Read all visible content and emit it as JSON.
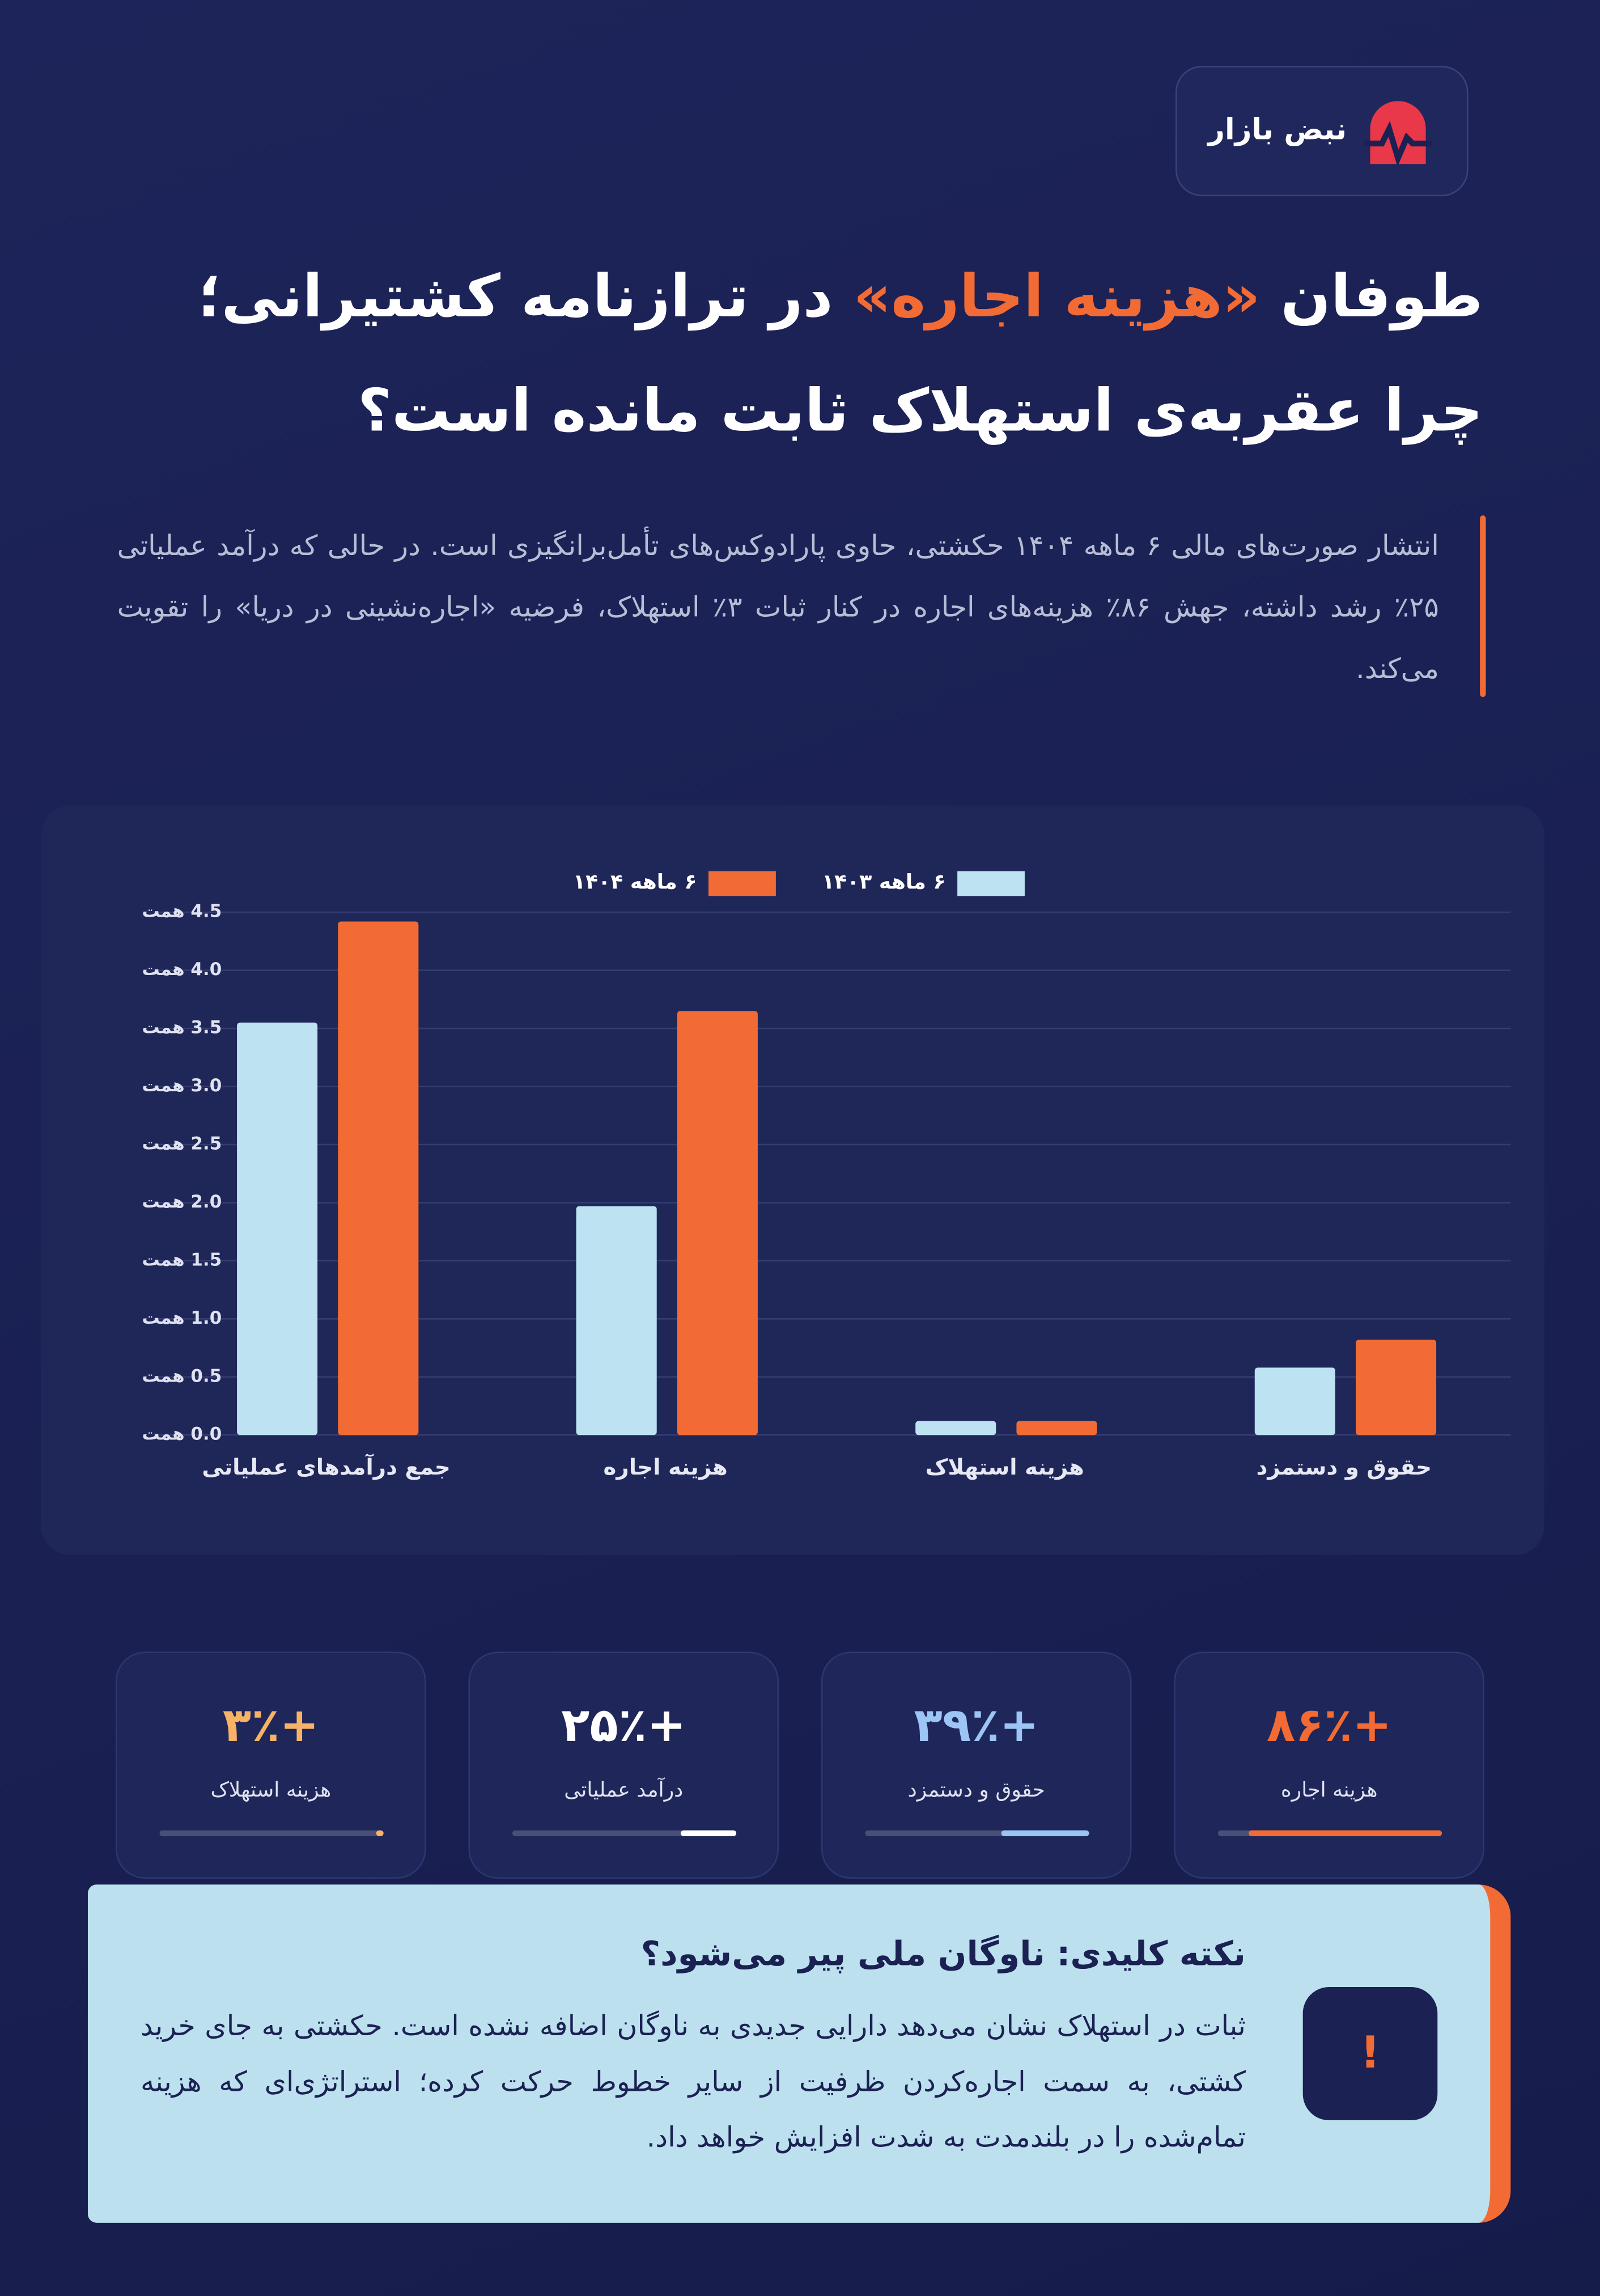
{
  "brand": "نبض بازار",
  "header": {
    "title_start": "طوفان",
    "title_highlight": "«هزینه اجاره»",
    "title_end": "در ترازنامه کشتیرانی؛",
    "title_line2": "چرا عقربه‌ی استهلاک ثابت مانده است؟"
  },
  "intro": "انتشار صورت‌های مالی ۶ ماهه ۱۴۰۴ حکشتی، حاوی پارادوکس‌های تأمل‌برانگیزی است. در حالی که درآمد عملیاتی ۲۵٪ رشد داشته، جهش ۸۶٪ هزینه‌های اجاره در کنار ثبات ۳٪ استهلاک، فرضیه «اجاره‌نشینی در دریا» را تقویت می‌کند.",
  "chart_data": {
    "type": "bar",
    "categories": [
      "جمع درآمدهای عملیاتی",
      "هزینه اجاره",
      "هزینه استهلاک",
      "حقوق و دستمزد"
    ],
    "series": [
      {
        "name": "۶ ماهه ۱۴۰۳",
        "color": "#bde3f2",
        "values": [
          3.55,
          1.97,
          0.12,
          0.58
        ]
      },
      {
        "name": "۶ ماهه ۱۴۰۴",
        "color": "#f26b35",
        "values": [
          4.42,
          3.65,
          0.12,
          0.82
        ]
      }
    ],
    "ylim": [
      0,
      4.5
    ],
    "yticks": [
      {
        "value": 0,
        "label": "0.0 همت"
      },
      {
        "value": 0.5,
        "label": "0.5 همت"
      },
      {
        "value": 1,
        "label": "1.0 همت"
      },
      {
        "value": 1.5,
        "label": "1.5 همت"
      },
      {
        "value": 2,
        "label": "2.0 همت"
      },
      {
        "value": 2.5,
        "label": "2.5 همت"
      },
      {
        "value": 3,
        "label": "3.0 همت"
      },
      {
        "value": 3.5,
        "label": "3.5 همت"
      },
      {
        "value": 4,
        "label": "4.0 همت"
      },
      {
        "value": 4.5,
        "label": "4.5 همت"
      }
    ],
    "grid": true,
    "legend": "top"
  },
  "stats": [
    {
      "value": 86,
      "label": "+۸۶٪",
      "name": "هزینه اجاره",
      "color": "#f26b35"
    },
    {
      "value": 39,
      "label": "+۳۹٪",
      "name": "حقوق و دستمزد",
      "color": "#9cc4f5"
    },
    {
      "value": 25,
      "label": "+۲۵٪",
      "name": "درآمد عملیاتی",
      "color": "#ffffff"
    },
    {
      "value": 3,
      "label": "+۳٪",
      "name": "هزینه استهلاک",
      "color": "#f7b267"
    }
  ],
  "note": {
    "icon": "!",
    "title": "نکته کلیدی: ناوگان ملی پیر می‌شود؟",
    "text": "ثبات در استهلاک نشان می‌دهد دارایی جدیدی به ناوگان اضافه نشده است. حکشتی به جای خرید کشتی، به سمت اجاره‌کردن ظرفیت از سایر خطوط حرکت کرده؛ استراتژی‌ای که هزینه تمام‌شده را در بلندمدت به شدت افزایش خواهد داد."
  }
}
